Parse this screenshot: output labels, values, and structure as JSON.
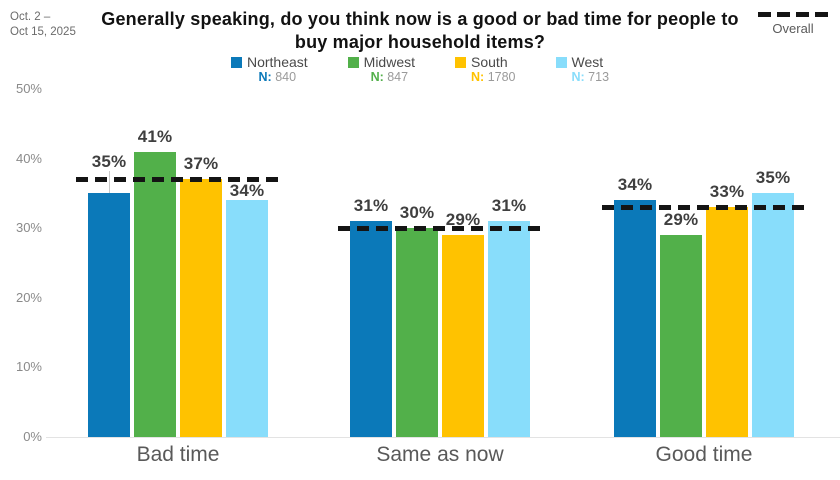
{
  "header": {
    "date_line1": "Oct. 2 –",
    "date_line2": "Oct 15, 2025",
    "title": "Generally speaking, do you think now is a good or bad time for people to buy major household items?",
    "overall_label": "Overall"
  },
  "legend": {
    "items": [
      {
        "label": "Northeast",
        "n_label": "N:",
        "n_value": "840",
        "color": "#0b79b9"
      },
      {
        "label": "Midwest",
        "n_label": "N:",
        "n_value": "847",
        "color": "#52b04a"
      },
      {
        "label": "South",
        "n_label": "N:",
        "n_value": "1780",
        "color": "#ffc200"
      },
      {
        "label": "West",
        "n_label": "N:",
        "n_value": "713",
        "color": "#88ddfb"
      }
    ]
  },
  "chart_data": {
    "type": "bar",
    "subtype": "grouped",
    "title": "Generally speaking, do you think now is a good or bad time for people to buy major household items?",
    "date_range": "Oct. 2 – Oct 15, 2025",
    "categories": [
      "Bad time",
      "Same as now",
      "Good time"
    ],
    "series": [
      {
        "name": "Northeast",
        "color": "#0b79b9",
        "n": 840,
        "values": [
          35,
          31,
          34
        ]
      },
      {
        "name": "Midwest",
        "color": "#52b04a",
        "n": 847,
        "values": [
          41,
          30,
          29
        ]
      },
      {
        "name": "South",
        "color": "#ffc200",
        "n": 1780,
        "values": [
          37,
          29,
          33
        ]
      },
      {
        "name": "West",
        "color": "#88ddfb",
        "n": 713,
        "values": [
          34,
          31,
          35
        ]
      }
    ],
    "overall": {
      "name": "Overall",
      "style": "dashed-line",
      "color": "#141414",
      "values": [
        37,
        30,
        33
      ]
    },
    "value_suffix": "%",
    "yticks": [
      "0%",
      "10%",
      "20%",
      "30%",
      "40%",
      "50%"
    ],
    "ytick_values": [
      0,
      10,
      20,
      30,
      40,
      50
    ],
    "ylim": [
      0,
      50
    ],
    "grid": false,
    "legend_position": "top"
  }
}
